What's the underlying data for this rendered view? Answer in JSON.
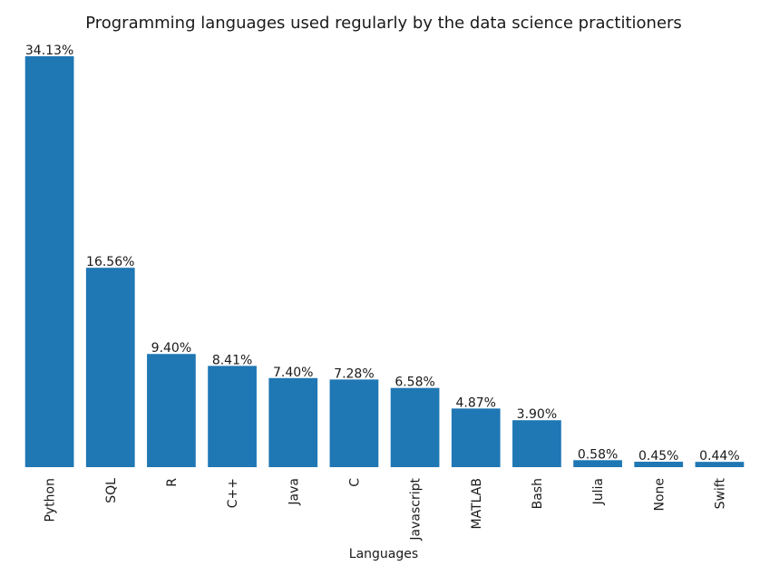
{
  "chart_data": {
    "type": "bar",
    "title": "Programming languages used regularly by the data science practitioners",
    "xlabel": "Languages",
    "ylabel": "",
    "categories": [
      "Python",
      "SQL",
      "R",
      "C++",
      "Java",
      "C",
      "Javascript",
      "MATLAB",
      "Bash",
      "Julia",
      "None",
      "Swift"
    ],
    "values": [
      34.13,
      16.56,
      9.4,
      8.41,
      7.4,
      7.28,
      6.58,
      4.87,
      3.9,
      0.58,
      0.45,
      0.44
    ],
    "value_labels": [
      "34.13%",
      "16.56%",
      "9.40%",
      "8.41%",
      "7.40%",
      "7.28%",
      "6.58%",
      "4.87%",
      "3.90%",
      "0.58%",
      "0.45%",
      "0.44%"
    ],
    "ylim": [
      0,
      34.13
    ],
    "grid": false,
    "bar_color": "#1f77b4"
  }
}
